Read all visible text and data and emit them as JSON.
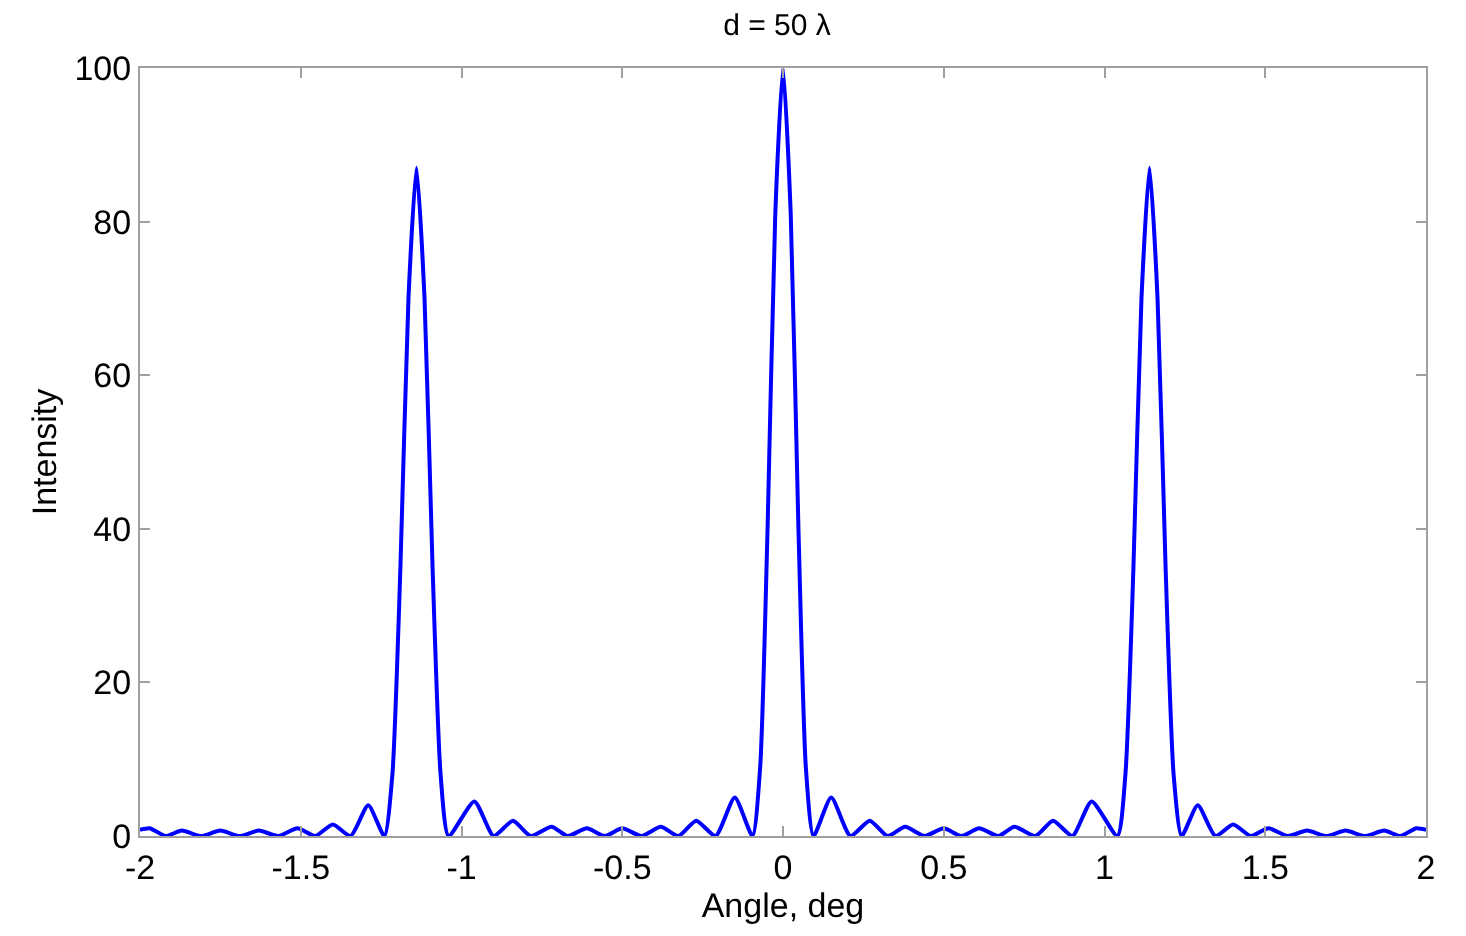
{
  "chart_data": {
    "type": "line",
    "title": "d = 50 λ",
    "xlabel": "Angle, deg",
    "ylabel": "Intensity",
    "xlim": [
      -2,
      2
    ],
    "ylim": [
      0,
      100
    ],
    "xticks": [
      -2,
      -1.5,
      -1,
      -0.5,
      0,
      0.5,
      1,
      1.5,
      2
    ],
    "yticks": [
      0,
      20,
      40,
      60,
      80,
      100
    ],
    "marker": "none",
    "line_style": "solid",
    "series": [
      {
        "color": "#0000ff",
        "x": [
          -2.0,
          -1.97,
          -1.92,
          -1.87,
          -1.81,
          -1.75,
          -1.69,
          -1.63,
          -1.57,
          -1.51,
          -1.455,
          -1.4,
          -1.345,
          -1.29,
          -1.24,
          -1.215,
          -1.19,
          -1.165,
          -1.14,
          -1.115,
          -1.09,
          -1.065,
          -1.04,
          -0.96,
          -0.9,
          -0.84,
          -0.785,
          -0.72,
          -0.67,
          -0.61,
          -0.555,
          -0.5,
          -0.44,
          -0.38,
          -0.325,
          -0.27,
          -0.21,
          -0.15,
          -0.095,
          -0.071,
          -0.048,
          -0.024,
          0,
          0.024,
          0.048,
          0.071,
          0.095,
          0.15,
          0.21,
          0.27,
          0.325,
          0.38,
          0.44,
          0.5,
          0.555,
          0.61,
          0.67,
          0.72,
          0.785,
          0.84,
          0.9,
          0.96,
          1.04,
          1.065,
          1.09,
          1.115,
          1.14,
          1.165,
          1.19,
          1.215,
          1.24,
          1.29,
          1.345,
          1.4,
          1.455,
          1.51,
          1.57,
          1.63,
          1.69,
          1.75,
          1.81,
          1.87,
          1.92,
          1.97,
          2.0
        ],
        "values": [
          0.8,
          1,
          0,
          0.7,
          0,
          0.7,
          0,
          0.7,
          0,
          1,
          0,
          1.5,
          0,
          4,
          0,
          8,
          35,
          70,
          87,
          70,
          35,
          8,
          0,
          4.5,
          0,
          2,
          0,
          1.2,
          0,
          1,
          0,
          1,
          0,
          1.2,
          0,
          2,
          0,
          5,
          0,
          9,
          40,
          81,
          100,
          81,
          40,
          9,
          0,
          5,
          0,
          2,
          0,
          1.2,
          0,
          1,
          0,
          1,
          0,
          1.2,
          0,
          2,
          0,
          4.5,
          0,
          8,
          35,
          70,
          87,
          70,
          35,
          8,
          0,
          4,
          0,
          1.5,
          0,
          1,
          0,
          0.7,
          0,
          0.7,
          0,
          0.7,
          0,
          1,
          0.8
        ]
      }
    ]
  }
}
